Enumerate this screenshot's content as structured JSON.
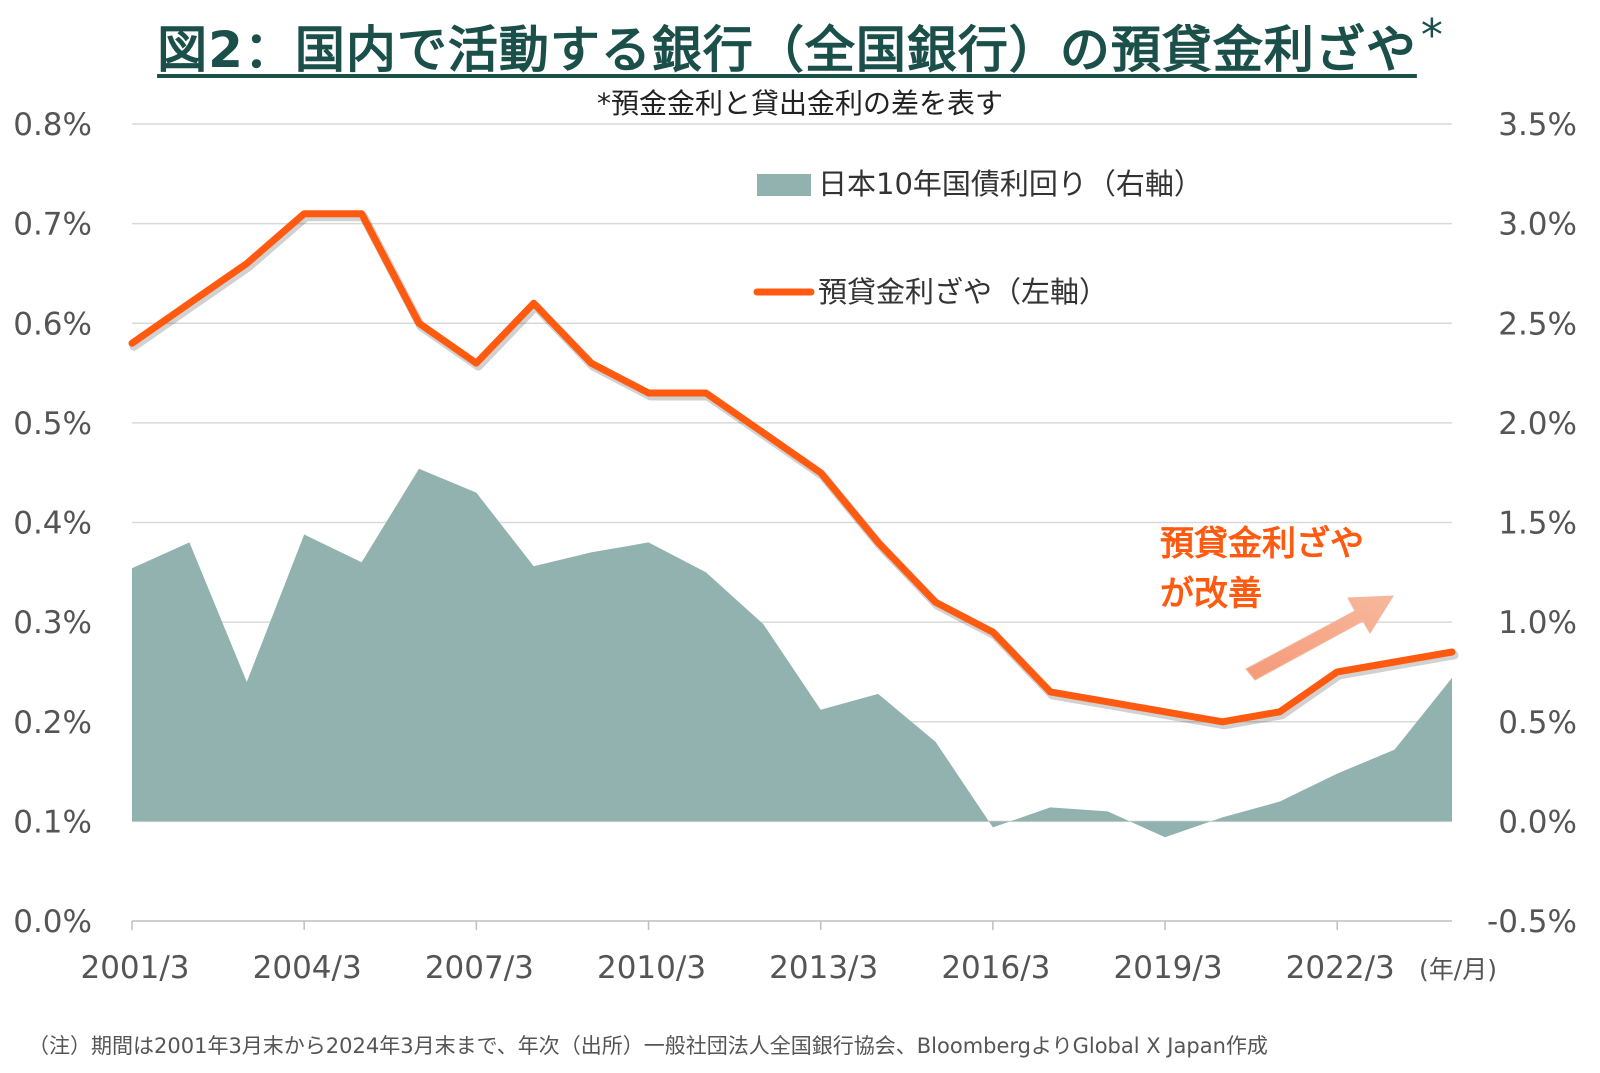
{
  "title": "図2：国内で活動する銀行（全国銀行）の預貸金利ざや",
  "title_mark": "*",
  "subtitle": "*預金金利と貸出金利の差を表す",
  "footnote": "（注）期間は2001年3月末から2024年3月末まで、年次（出所）一般社団法人全国銀行協会、BloombergよりGlobal X Japan作成",
  "colors": {
    "area": "#92b2b0",
    "line": "#ff5a0f",
    "grid": "#d9d9d9",
    "title": "#1b4f4a"
  },
  "chart_data": {
    "type": "line",
    "x_unit_label": "(年/月)",
    "x_tick_labels": [
      "2001/3",
      "2004/3",
      "2007/3",
      "2010/3",
      "2013/3",
      "2016/3",
      "2019/3",
      "2022/3"
    ],
    "x": [
      "2001/3",
      "2002/3",
      "2003/3",
      "2004/3",
      "2005/3",
      "2006/3",
      "2007/3",
      "2008/3",
      "2009/3",
      "2010/3",
      "2011/3",
      "2012/3",
      "2013/3",
      "2014/3",
      "2015/3",
      "2016/3",
      "2017/3",
      "2018/3",
      "2019/3",
      "2020/3",
      "2021/3",
      "2022/3",
      "2023/3",
      "2024/3"
    ],
    "left_axis": {
      "ticks": [
        "0.0%",
        "0.1%",
        "0.2%",
        "0.3%",
        "0.4%",
        "0.5%",
        "0.6%",
        "0.7%",
        "0.8%"
      ],
      "min": 0.0,
      "max": 0.8
    },
    "right_axis": {
      "ticks": [
        "-0.5%",
        "0.0%",
        "0.5%",
        "1.0%",
        "1.5%",
        "2.0%",
        "2.5%",
        "3.0%",
        "3.5%"
      ],
      "min": -0.5,
      "max": 3.5
    },
    "grid": true,
    "legend_position": "top-center",
    "series": [
      {
        "name": "日本10年国債利回り（右軸）",
        "type": "area",
        "axis": "right",
        "values": [
          1.27,
          1.4,
          0.7,
          1.44,
          1.3,
          1.77,
          1.65,
          1.28,
          1.35,
          1.4,
          1.25,
          0.99,
          0.56,
          0.64,
          0.4,
          -0.03,
          0.07,
          0.05,
          -0.08,
          0.02,
          0.1,
          0.24,
          0.36,
          0.72
        ]
      },
      {
        "name": "預貸金利ざや（左軸）",
        "type": "line",
        "axis": "left",
        "values": [
          0.58,
          0.62,
          0.66,
          0.71,
          0.71,
          0.6,
          0.56,
          0.62,
          0.56,
          0.53,
          0.53,
          0.49,
          0.45,
          0.38,
          0.32,
          0.29,
          0.23,
          0.22,
          0.21,
          0.2,
          0.21,
          0.25,
          0.26,
          0.27
        ]
      }
    ],
    "annotation": {
      "line1": "預貸金利ざや",
      "line2": "が改善"
    }
  }
}
